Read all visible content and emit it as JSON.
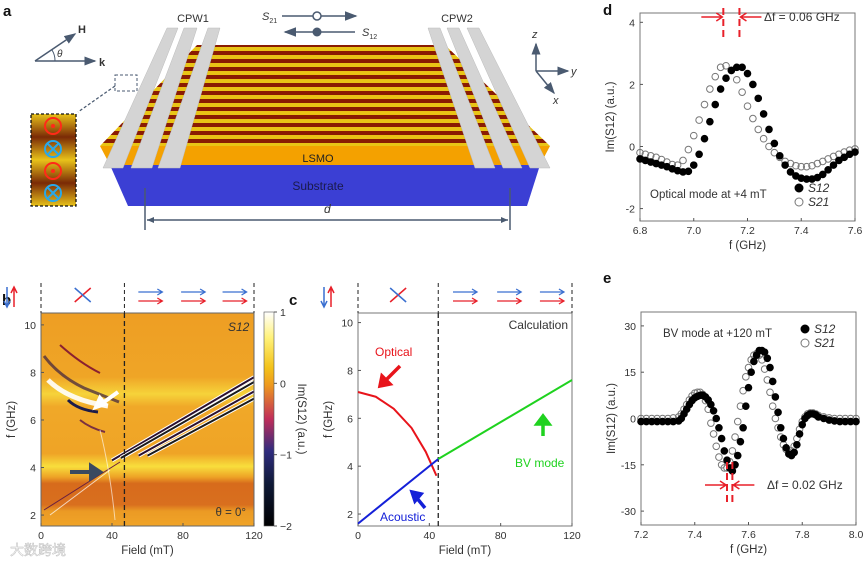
{
  "panel_labels": {
    "a": "a",
    "b": "b",
    "c": "c",
    "d": "d",
    "e": "e"
  },
  "panel_a": {
    "cpw1": "CPW1",
    "cpw2": "CPW2",
    "s21": "S",
    "s21_sub": "21",
    "s12": "S",
    "s12_sub": "12",
    "field_H": "H",
    "wave_k": "k",
    "angle": "θ",
    "lsmo": "LSMO",
    "substrate": "Substrate",
    "distance": "d",
    "axis_z": "z",
    "axis_y": "y",
    "axis_x": "x",
    "colors": {
      "lsmo": "#f4a100",
      "substrate": "#3b3fd4",
      "stripe_dark": "#8a1c02",
      "stripe_light": "#e9c415",
      "cpw": "#d4d4d4"
    }
  },
  "watermark": "大数跨境",
  "chart_data": [
    {
      "id": "b",
      "type": "heatmap",
      "title": "S12",
      "xlabel": "Field (mT)",
      "ylabel": "f (GHz)",
      "xlim": [
        0,
        120
      ],
      "ylim": [
        1.54,
        10.5
      ],
      "xticks": [
        0,
        40,
        80,
        120
      ],
      "yticks": [
        2,
        4,
        6,
        8,
        10
      ],
      "annotation": "θ = 0°",
      "dashed_line_x": 47,
      "colorbar": {
        "label": "Im(S12) (a.u.)",
        "range": [
          -2,
          1
        ],
        "ticks": [
          1,
          0,
          -1,
          -2
        ]
      },
      "bright_bands_GHz": [
        7.0,
        3.9
      ],
      "dark_band_GHz": [
        2.5,
        3.4
      ],
      "dispersion_lines": [
        {
          "field": [
            40,
            120
          ],
          "f": [
            4.3,
            7.8
          ]
        },
        {
          "field": [
            45,
            120
          ],
          "f": [
            4.4,
            7.6
          ]
        },
        {
          "field": [
            55,
            120
          ],
          "f": [
            4.5,
            7.2
          ]
        },
        {
          "field": [
            60,
            120
          ],
          "f": [
            4.5,
            6.9
          ]
        }
      ]
    },
    {
      "id": "c",
      "type": "line",
      "title": "Calculation",
      "xlabel": "Field (mT)",
      "ylabel": "f (GHz)",
      "xlim": [
        0,
        120
      ],
      "ylim": [
        1.5,
        10.4
      ],
      "xticks": [
        0,
        40,
        80,
        120
      ],
      "yticks": [
        2,
        4,
        6,
        8,
        10
      ],
      "dashed_line_x": 45,
      "series": [
        {
          "name": "Optical",
          "color": "#e8141b",
          "x": [
            0,
            10,
            20,
            30,
            38,
            44
          ],
          "y": [
            7.1,
            6.9,
            6.4,
            5.6,
            4.6,
            3.6
          ]
        },
        {
          "name": "Acoustic",
          "color": "#1420d8",
          "x": [
            0,
            45
          ],
          "y": [
            1.6,
            4.3
          ]
        },
        {
          "name": "BV mode",
          "color": "#1fd21f",
          "x": [
            45,
            120
          ],
          "y": [
            4.3,
            7.6
          ]
        }
      ]
    },
    {
      "id": "d",
      "type": "scatter",
      "xlabel": "f (GHz)",
      "ylabel": "Im(S12) (a.u.)",
      "xlim": [
        6.8,
        7.6
      ],
      "ylim": [
        -2.4,
        4.3
      ],
      "xticks": [
        "6.8",
        "7.0",
        "7.2",
        "7.4",
        "7.6"
      ],
      "yticks": [
        -2,
        0,
        2,
        4
      ],
      "annotation": "Optical mode at +4 mT",
      "delta_label": "Δf = 0.06 GHz",
      "delta_markers": [
        7.11,
        7.17
      ],
      "x": [
        6.8,
        6.82,
        6.84,
        6.86,
        6.88,
        6.9,
        6.92,
        6.94,
        6.96,
        6.98,
        7.0,
        7.02,
        7.04,
        7.06,
        7.08,
        7.1,
        7.12,
        7.14,
        7.16,
        7.18,
        7.2,
        7.22,
        7.24,
        7.26,
        7.28,
        7.3,
        7.32,
        7.34,
        7.36,
        7.38,
        7.4,
        7.42,
        7.44,
        7.46,
        7.48,
        7.5,
        7.52,
        7.54,
        7.56,
        7.58,
        7.6
      ],
      "series": [
        {
          "name": "S12",
          "sub": "12",
          "marker": "filled",
          "y": [
            -0.4,
            -0.45,
            -0.5,
            -0.55,
            -0.6,
            -0.65,
            -0.72,
            -0.78,
            -0.82,
            -0.8,
            -0.6,
            -0.25,
            0.25,
            0.8,
            1.35,
            1.85,
            2.2,
            2.45,
            2.55,
            2.55,
            2.35,
            2.0,
            1.55,
            1.05,
            0.55,
            0.1,
            -0.3,
            -0.6,
            -0.82,
            -0.95,
            -1.02,
            -1.05,
            -1.05,
            -1.0,
            -0.9,
            -0.75,
            -0.6,
            -0.45,
            -0.35,
            -0.25,
            -0.18
          ]
        },
        {
          "name": "S21",
          "sub": "21",
          "marker": "open",
          "y": [
            -0.2,
            -0.25,
            -0.3,
            -0.35,
            -0.42,
            -0.5,
            -0.58,
            -0.6,
            -0.45,
            -0.1,
            0.35,
            0.85,
            1.35,
            1.85,
            2.25,
            2.55,
            2.6,
            2.45,
            2.15,
            1.75,
            1.3,
            0.9,
            0.55,
            0.25,
            0.0,
            -0.2,
            -0.35,
            -0.48,
            -0.55,
            -0.62,
            -0.65,
            -0.65,
            -0.62,
            -0.55,
            -0.48,
            -0.4,
            -0.32,
            -0.25,
            -0.18,
            -0.12,
            -0.08
          ]
        }
      ]
    },
    {
      "id": "e",
      "type": "scatter",
      "xlabel": "f (GHz)",
      "ylabel": "Im(S12) (a.u.)",
      "xlim": [
        7.2,
        8.0
      ],
      "ylim": [
        -34.5,
        34.5
      ],
      "xticks": [
        "7.2",
        "7.4",
        "7.6",
        "7.8",
        "8.0"
      ],
      "yticks": [
        -30,
        -15,
        0,
        15,
        30
      ],
      "annotation": "BV mode at +120 mT",
      "delta_label": "Δf = 0.02 GHz",
      "delta_markers": [
        7.52,
        7.54
      ],
      "x": [
        7.2,
        7.22,
        7.24,
        7.26,
        7.28,
        7.3,
        7.32,
        7.34,
        7.35,
        7.36,
        7.37,
        7.38,
        7.39,
        7.4,
        7.41,
        7.42,
        7.43,
        7.44,
        7.45,
        7.46,
        7.47,
        7.48,
        7.49,
        7.5,
        7.51,
        7.52,
        7.53,
        7.54,
        7.55,
        7.56,
        7.57,
        7.58,
        7.59,
        7.6,
        7.61,
        7.62,
        7.63,
        7.64,
        7.65,
        7.66,
        7.67,
        7.68,
        7.69,
        7.7,
        7.71,
        7.72,
        7.73,
        7.74,
        7.75,
        7.76,
        7.77,
        7.78,
        7.79,
        7.8,
        7.81,
        7.82,
        7.83,
        7.84,
        7.85,
        7.86,
        7.88,
        7.9,
        7.92,
        7.94,
        7.96,
        7.98,
        8.0
      ],
      "series": [
        {
          "name": "S12",
          "sub": "12",
          "marker": "filled",
          "y": [
            -1,
            -1,
            -1,
            -1,
            -1,
            -1,
            -1,
            -0.8,
            0,
            1.5,
            3,
            4.5,
            5.8,
            6.7,
            7.2,
            7.5,
            7.5,
            7.0,
            6.0,
            4.5,
            2.5,
            0,
            -3,
            -6.5,
            -10.5,
            -13.5,
            -16,
            -17,
            -15,
            -12,
            -7.5,
            -3,
            4,
            10,
            15,
            18.5,
            20.5,
            22,
            22,
            21.5,
            19.5,
            16.5,
            12,
            7,
            2,
            -3,
            -6.5,
            -9.5,
            -11.5,
            -12,
            -11,
            -8.5,
            -5,
            -2,
            0,
            1,
            1.5,
            1.5,
            1.2,
            0.5,
            0,
            -0.5,
            -0.8,
            -1,
            -1,
            -1,
            -1
          ]
        },
        {
          "name": "S21",
          "sub": "21",
          "marker": "open",
          "y": [
            0,
            0,
            0,
            0,
            0,
            0,
            0.2,
            0.5,
            1.5,
            3,
            4.5,
            6,
            7.3,
            8.2,
            8.5,
            8.5,
            7.8,
            5.8,
            3,
            -1.5,
            -5,
            -9,
            -12.5,
            -15,
            -16,
            -16,
            -14,
            -10.5,
            -6,
            -1,
            4,
            9,
            13.5,
            16.5,
            19,
            20.5,
            21,
            20.5,
            19,
            16,
            12.5,
            8.5,
            4,
            0,
            -3,
            -6,
            -8.5,
            -10,
            -11,
            -10.5,
            -9,
            -6.5,
            -3.5,
            -1,
            0.5,
            1.5,
            1.8,
            1.8,
            1.5,
            1,
            0.5,
            0.2,
            0,
            0,
            0,
            0,
            0
          ]
        }
      ]
    }
  ]
}
